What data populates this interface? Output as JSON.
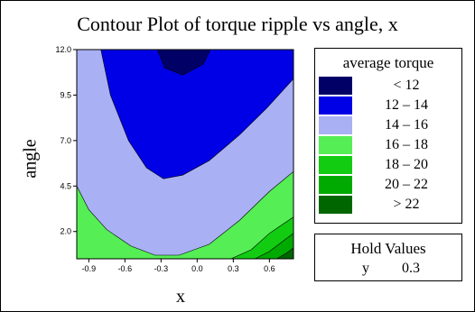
{
  "chart_data": {
    "type": "contour",
    "title": "Contour Plot of torque ripple vs angle, x",
    "xlabel": "x",
    "ylabel": "angle",
    "xlim": [
      -1.0,
      0.8
    ],
    "ylim": [
      0.5,
      12.0
    ],
    "x_ticks": [
      "-0.9",
      "-0.6",
      "-0.3",
      "0.0",
      "0.3",
      "0.6"
    ],
    "x_tick_values": [
      -0.9,
      -0.6,
      -0.3,
      0.0,
      0.3,
      0.6
    ],
    "y_ticks": [
      "2.0",
      "4.5",
      "7.0",
      "9.5",
      "12.0"
    ],
    "y_tick_values": [
      2.0,
      4.5,
      7.0,
      9.5,
      12.0
    ],
    "legend_title": "average torque",
    "levels": [
      {
        "label": "< 12",
        "color": "#000066"
      },
      {
        "label": "12 – 14",
        "color": "#0000e6"
      },
      {
        "label": "14 – 16",
        "color": "#aab0f4"
      },
      {
        "label": "16 – 18",
        "color": "#55ee55"
      },
      {
        "label": "18 – 20",
        "color": "#11cc11"
      },
      {
        "label": "20 – 22",
        "color": "#00aa00"
      },
      {
        "label": "> 22",
        "color": "#006600"
      }
    ],
    "contour_boundaries": [
      {
        "between": "< 12 | 12 – 14",
        "points": [
          [
            -0.33,
            12.0
          ],
          [
            -0.27,
            11.0
          ],
          [
            -0.12,
            10.6
          ],
          [
            0.05,
            11.2
          ],
          [
            0.11,
            12.0
          ]
        ]
      },
      {
        "between": "12 – 14 | 14 – 16",
        "points": [
          [
            -0.8,
            12.0
          ],
          [
            -0.72,
            9.5
          ],
          [
            -0.57,
            7.0
          ],
          [
            -0.42,
            5.5
          ],
          [
            -0.28,
            4.9
          ],
          [
            -0.12,
            5.1
          ],
          [
            0.1,
            5.9
          ],
          [
            0.35,
            7.3
          ],
          [
            0.58,
            8.8
          ],
          [
            0.8,
            10.4
          ]
        ]
      },
      {
        "between": "14 – 16 | 16 – 18",
        "points": [
          [
            -1.0,
            4.5
          ],
          [
            -0.9,
            3.2
          ],
          [
            -0.75,
            2.1
          ],
          [
            -0.55,
            1.2
          ],
          [
            -0.35,
            0.7
          ],
          [
            -0.15,
            0.7
          ],
          [
            0.1,
            1.3
          ],
          [
            0.35,
            2.6
          ],
          [
            0.6,
            4.2
          ],
          [
            0.8,
            5.3
          ]
        ]
      },
      {
        "between": "16 – 18 | 18 – 20",
        "points": [
          [
            0.28,
            0.5
          ],
          [
            0.45,
            1.0
          ],
          [
            0.6,
            1.9
          ],
          [
            0.8,
            2.8
          ]
        ]
      },
      {
        "between": "18 – 20 | 20 – 22",
        "points": [
          [
            0.48,
            0.5
          ],
          [
            0.6,
            0.9
          ],
          [
            0.72,
            1.5
          ],
          [
            0.8,
            1.9
          ]
        ]
      },
      {
        "between": "20 – 22 | > 22",
        "points": [
          [
            0.66,
            0.5
          ],
          [
            0.74,
            0.8
          ],
          [
            0.8,
            1.1
          ]
        ]
      }
    ],
    "hold_values_title": "Hold Values",
    "hold_values": [
      {
        "variable": "y",
        "value": "0.3"
      }
    ]
  }
}
